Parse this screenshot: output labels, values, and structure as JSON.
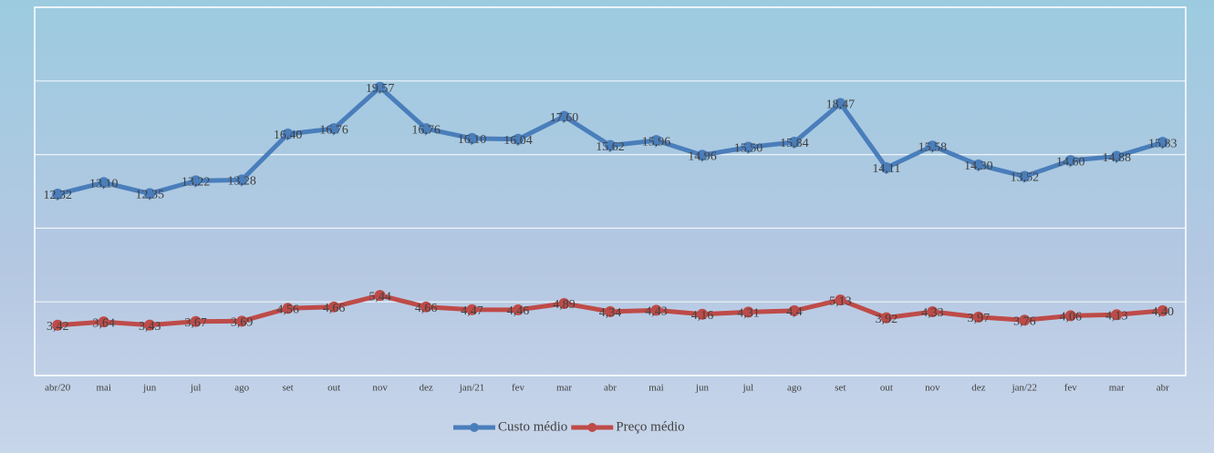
{
  "chart_data": {
    "type": "line",
    "categories": [
      "abr/20",
      "mai",
      "jun",
      "jul",
      "ago",
      "set",
      "out",
      "nov",
      "dez",
      "jan/21",
      "fev",
      "mar",
      "abr",
      "mai",
      "jun",
      "jul",
      "ago",
      "set",
      "out",
      "nov",
      "dez",
      "jan/22",
      "fev",
      "mar",
      "abr"
    ],
    "series": [
      {
        "name": "Custo médio",
        "color": "#4a7ebb",
        "values": [
          12.32,
          13.1,
          12.35,
          13.22,
          13.28,
          16.4,
          16.76,
          19.57,
          16.76,
          16.1,
          16.04,
          17.6,
          15.62,
          15.96,
          14.96,
          15.5,
          15.84,
          18.47,
          14.11,
          15.58,
          14.3,
          13.52,
          14.6,
          14.88,
          15.83
        ],
        "value_labels": [
          "12,32",
          "13,10",
          "12,35",
          "13,22",
          "13,28",
          "16,40",
          "16,76",
          "19,57",
          "16,76",
          "16,10",
          "16,04",
          "17,60",
          "15,62",
          "15,96",
          "14,96",
          "15,50",
          "15,84",
          "18,47",
          "14,11",
          "15,58",
          "14,30",
          "13,52",
          "14,60",
          "14,88",
          "15,83"
        ]
      },
      {
        "name": "Preço médio",
        "color": "#be4b48",
        "values": [
          3.42,
          3.64,
          3.43,
          3.67,
          3.69,
          4.56,
          4.66,
          5.44,
          4.66,
          4.47,
          4.46,
          4.89,
          4.34,
          4.43,
          4.16,
          4.31,
          4.4,
          5.13,
          3.92,
          4.33,
          3.97,
          3.76,
          4.06,
          4.13,
          4.4
        ],
        "value_labels": [
          "3,42",
          "3,64",
          "3,43",
          "3,67",
          "3,69",
          "4,56",
          "4,66",
          "5,44",
          "4,66",
          "4,47",
          "4,46",
          "4,89",
          "4,34",
          "4,43",
          "4,16",
          "4,31",
          "4,4",
          "5,13",
          "3,92",
          "4,33",
          "3,97",
          "3,76",
          "4,06",
          "4,13",
          "4,40"
        ]
      }
    ],
    "ylim": [
      0,
      25
    ],
    "yticks": [
      0,
      5,
      10,
      15,
      20,
      25
    ],
    "grid": true,
    "legend": "bottom"
  }
}
